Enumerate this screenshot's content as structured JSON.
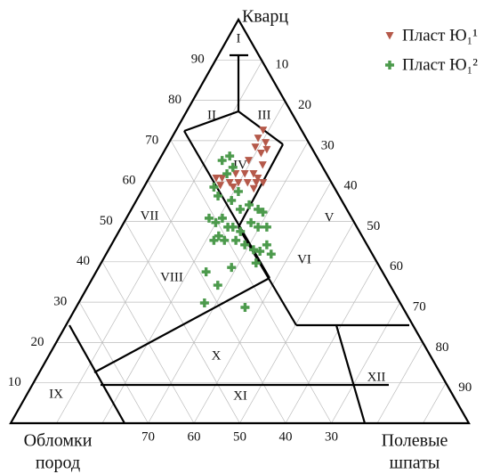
{
  "chart_data": {
    "type": "ternary",
    "axes": {
      "top": {
        "title": "Кварц",
        "ticks": [
          10,
          20,
          30,
          40,
          50,
          60,
          70,
          80,
          90
        ]
      },
      "right": {
        "title": [
          "Полевые",
          "шпаты"
        ],
        "ticks": [
          10,
          20,
          30,
          40,
          50,
          60,
          70,
          80,
          90
        ]
      },
      "left": {
        "title": [
          "Обломки",
          "пород"
        ],
        "ticks": [
          30,
          40,
          50,
          60,
          70
        ]
      }
    },
    "regions": [
      "I",
      "II",
      "III",
      "IV",
      "V",
      "VI",
      "VII",
      "VIII",
      "IX",
      "X",
      "XI",
      "XII"
    ],
    "grid": true,
    "legend": "upper right",
    "series": [
      {
        "name": "Пласт Ю₁¹",
        "color": "#b5594a",
        "marker": "triangle-down",
        "q": [
          72.6,
          70.6,
          69.5,
          68.4,
          66.9,
          67.8,
          65.1,
          64.0,
          61.8,
          61.8,
          61.8,
          60.7,
          60.7,
          59.6,
          59.6,
          59.6,
          59.6,
          59.6,
          58.9,
          58.5,
          58.1,
          60.7
        ],
        "f": [
          18.8,
          18.7,
          20.9,
          19.2,
          21.2,
          22.0,
          19.4,
          23.0,
          18.2,
          20.2,
          22.1,
          23.6,
          15.8,
          18.0,
          19.9,
          21.9,
          23.8,
          25.3,
          16.3,
          19.3,
          24.0,
          14.5
        ]
      },
      {
        "name": "Пласт Ю₁²",
        "color": "#4c9a4c",
        "marker": "plus",
        "q": [
          65.1,
          66.2,
          63.4,
          61.8,
          58.5,
          56.3,
          55.2,
          53.0,
          57.4,
          54.1,
          53.0,
          52.3,
          50.8,
          49.7,
          50.8,
          48.6,
          48.6,
          47.5,
          49.7,
          48.6,
          46.4,
          45.3,
          45.3,
          45.3,
          44.2,
          43.0,
          44.2,
          42.6,
          39.7,
          38.6,
          37.5,
          34.2,
          29.8,
          28.7,
          48.6,
          41.9
        ],
        "f": [
          13.6,
          14.7,
          16.8,
          16.3,
          15.1,
          17.1,
          20.6,
          23.6,
          21.0,
          25.0,
          27.5,
          28.9,
          17.9,
          19.9,
          20.8,
          23.1,
          24.2,
          26.4,
          27.6,
          29.7,
          22.2,
          21.7,
          24.0,
          26.5,
          29.0,
          31.5,
          33.8,
          33.1,
          33.7,
          28.9,
          23.9,
          28.1,
          27.4,
          36.8,
          31.6,
          35.9
        ]
      }
    ]
  }
}
